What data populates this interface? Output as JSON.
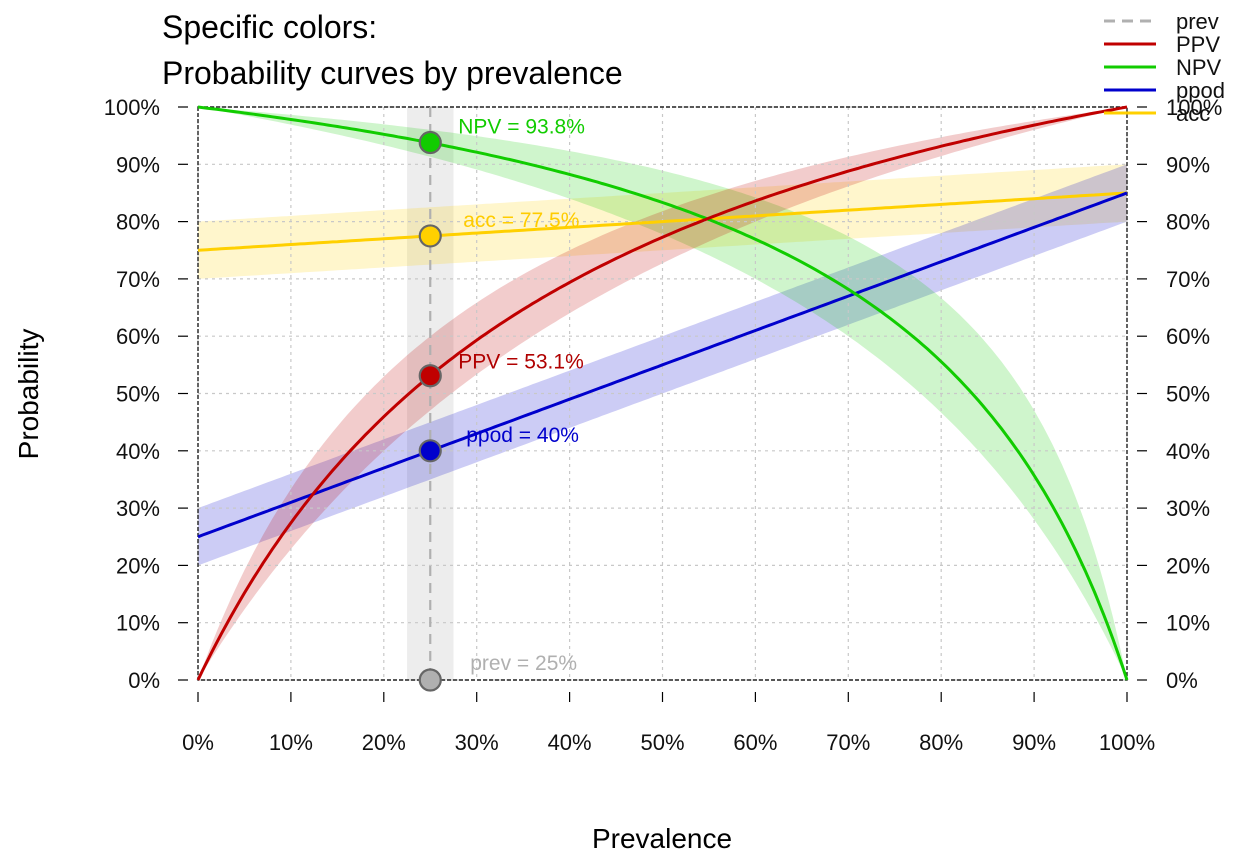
{
  "chart_data": {
    "type": "line",
    "title_lines": [
      "Specific colors:",
      "Probability curves by prevalence"
    ],
    "xlabel": "Prevalence",
    "ylabel": "Probability",
    "xlim": [
      0,
      1
    ],
    "ylim": [
      0,
      1
    ],
    "x_ticks": [
      "0%",
      "10%",
      "20%",
      "30%",
      "40%",
      "50%",
      "60%",
      "70%",
      "80%",
      "90%",
      "100%"
    ],
    "y_ticks": [
      "0%",
      "10%",
      "20%",
      "30%",
      "40%",
      "50%",
      "60%",
      "70%",
      "80%",
      "90%",
      "100%"
    ],
    "right_axis": true,
    "grid": true,
    "legend_position": "top-right",
    "sensitivity": 0.85,
    "specificity": 0.75,
    "band_halfwidth": 0.05,
    "prevalence_marker": 0.25,
    "series": [
      {
        "name": "prev",
        "key": "prev",
        "color": "#b0b0b0",
        "dashed": true
      },
      {
        "name": "PPV",
        "key": "ppv",
        "color": "#c00000"
      },
      {
        "name": "NPV",
        "key": "npv",
        "color": "#11cc00"
      },
      {
        "name": "ppod",
        "key": "ppod",
        "color": "#0000cc"
      },
      {
        "name": "acc",
        "key": "acc",
        "color": "#ffd000"
      }
    ],
    "points": [
      {
        "key": "prev",
        "x": 0.25,
        "y": 0.0,
        "label": "prev = 25%"
      },
      {
        "key": "ppv",
        "x": 0.25,
        "y": 0.531,
        "label": "PPV = 53.1%"
      },
      {
        "key": "npv",
        "x": 0.25,
        "y": 0.938,
        "label": "NPV = 93.8%"
      },
      {
        "key": "ppod",
        "x": 0.25,
        "y": 0.4,
        "label": "ppod = 40%"
      },
      {
        "key": "acc",
        "x": 0.25,
        "y": 0.775,
        "label": "acc = 77.5%"
      }
    ],
    "legend": [
      {
        "key": "prev",
        "label": "prev"
      },
      {
        "key": "ppv",
        "label": "PPV"
      },
      {
        "key": "npv",
        "label": "NPV"
      },
      {
        "key": "ppod",
        "label": "ppod"
      },
      {
        "key": "acc",
        "label": "acc"
      }
    ],
    "colors": {
      "prev": "#b0b0b0",
      "ppv": "#c00000",
      "npv": "#11cc00",
      "ppod": "#0000cc",
      "acc": "#ffd000",
      "ppv_label": "#b00000",
      "npv_label": "#11cc00",
      "ppod_label": "#0000cc",
      "acc_label": "#ffcc00"
    }
  }
}
